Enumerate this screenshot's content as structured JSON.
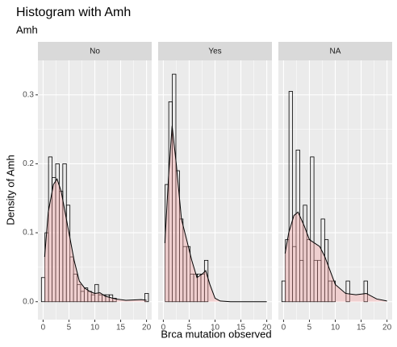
{
  "chart_data": {
    "type": "histogram",
    "title": "Histogram with Amh",
    "subtitle": "Amh",
    "x_label": "Brca mutation observed",
    "y_label": "Density of Amh",
    "xlim": [
      -1,
      21
    ],
    "ylim": [
      -0.026,
      0.35
    ],
    "xticks": [
      0,
      5,
      10,
      15,
      20
    ],
    "yticks": [
      {
        "value": 0,
        "label": "0.0"
      },
      {
        "value": 0.1,
        "label": "0.1"
      },
      {
        "value": 0.2,
        "label": "0.2"
      },
      {
        "value": 0.3,
        "label": "0.3"
      }
    ],
    "grid": true,
    "bar_color": "#000000",
    "density_color": "#f4a6a6",
    "bins": [
      -0.33,
      0.36,
      1.05,
      1.74,
      2.43,
      3.12,
      3.81,
      4.5,
      5.19,
      5.88,
      6.57,
      7.26,
      7.95,
      8.64,
      9.33,
      10.02,
      10.71,
      11.4,
      12.09,
      12.78,
      13.47,
      14.16,
      14.85,
      15.54,
      16.23,
      16.92,
      17.61,
      18.3,
      18.99,
      19.68,
      20.37
    ],
    "panels": [
      {
        "name": "No",
        "values": [
          0.035,
          0.1,
          0.21,
          0.18,
          0.2,
          0.16,
          0.2,
          0.14,
          0.065,
          0.04,
          0.025,
          0.015,
          0.02,
          0.015,
          0.01,
          0.025,
          0.01,
          0.01,
          0.01,
          0.01,
          0.005,
          0,
          0,
          0,
          0,
          0,
          0,
          0,
          0,
          0.012
        ],
        "density": {
          "x": [
            0.3,
            1,
            2,
            2.7,
            3.5,
            5,
            6,
            7,
            8,
            9,
            10,
            11,
            12,
            14,
            16,
            19,
            20
          ],
          "values": [
            0.065,
            0.13,
            0.17,
            0.178,
            0.16,
            0.1,
            0.06,
            0.03,
            0.02,
            0.015,
            0.012,
            0.013,
            0.008,
            0.004,
            0.002,
            0.003,
            0.002
          ]
        }
      },
      {
        "name": "Yes",
        "values": [
          0,
          0.17,
          0.29,
          0.33,
          0.19,
          0.12,
          0.08,
          0.08,
          0.04,
          0.04,
          0.04,
          0.04,
          0.06,
          0,
          0,
          0,
          0,
          0,
          0,
          0,
          0,
          0,
          0,
          0,
          0,
          0,
          0,
          0,
          0,
          0
        ],
        "density": {
          "x": [
            0.3,
            1,
            1.7,
            2.5,
            3.5,
            4.5,
            5.5,
            6.5,
            7.5,
            8.2,
            9,
            10,
            11,
            13,
            20
          ],
          "values": [
            0.085,
            0.18,
            0.255,
            0.2,
            0.12,
            0.09,
            0.06,
            0.035,
            0.04,
            0.045,
            0.025,
            0.005,
            0.001,
            0,
            0
          ]
        }
      },
      {
        "name": "NA",
        "values": [
          0.03,
          0.09,
          0.305,
          0.08,
          0.22,
          0.06,
          0.14,
          0.09,
          0.21,
          0.06,
          0.06,
          0.12,
          0.09,
          0.03,
          0.03,
          0,
          0,
          0,
          0.03,
          0,
          0,
          0,
          0,
          0.03,
          0,
          0,
          0,
          0,
          0,
          0
        ],
        "density": {
          "x": [
            0.3,
            1,
            2,
            2.8,
            4,
            5,
            6,
            7,
            8,
            9,
            10,
            12,
            14,
            16,
            18,
            20
          ],
          "values": [
            0.07,
            0.1,
            0.125,
            0.13,
            0.11,
            0.09,
            0.085,
            0.08,
            0.065,
            0.045,
            0.025,
            0.012,
            0.01,
            0.012,
            0.004,
            0.001
          ]
        }
      }
    ]
  }
}
